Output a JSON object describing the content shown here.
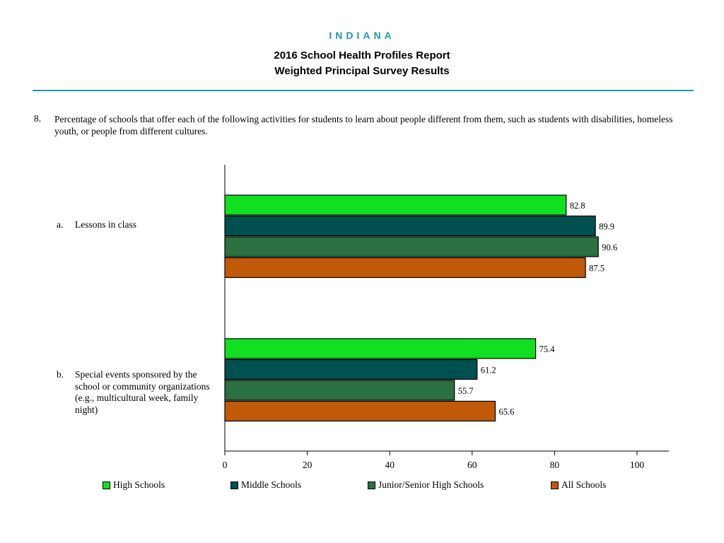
{
  "header": {
    "state": "INDIANA",
    "title_line1": "2016 School Health Profiles Report",
    "title_line2": "Weighted Principal Survey Results"
  },
  "question": {
    "number": "8.",
    "text": "Percentage of schools that offer each of the following activities for students to learn about people different from them, such as students with disabilities, homeless youth, or people from different cultures."
  },
  "categories": [
    {
      "letter": "a.",
      "label": "Lessons in class"
    },
    {
      "letter": "b.",
      "label": "Special events sponsored by the school or community organizations (e.g., multicultural week, family night)"
    }
  ],
  "chart_data": {
    "type": "bar",
    "orientation": "horizontal",
    "categories": [
      "Lessons in class",
      "Special events sponsored by the school or community organizations (e.g., multicultural week, family night)"
    ],
    "series": [
      {
        "name": "High Schools",
        "color": "#10e020",
        "values": [
          82.8,
          75.4
        ]
      },
      {
        "name": "Middle Schools",
        "color": "#005050",
        "values": [
          89.9,
          61.2
        ]
      },
      {
        "name": "Junior/Senior High Schools",
        "color": "#2a7040",
        "values": [
          90.6,
          55.7
        ]
      },
      {
        "name": "All Schools",
        "color": "#c05a08",
        "values": [
          87.5,
          65.6
        ]
      }
    ],
    "xlim": [
      0,
      108
    ],
    "xticks": [
      0,
      20,
      40,
      60,
      80,
      100
    ],
    "grid": false,
    "legend": "bottom"
  }
}
